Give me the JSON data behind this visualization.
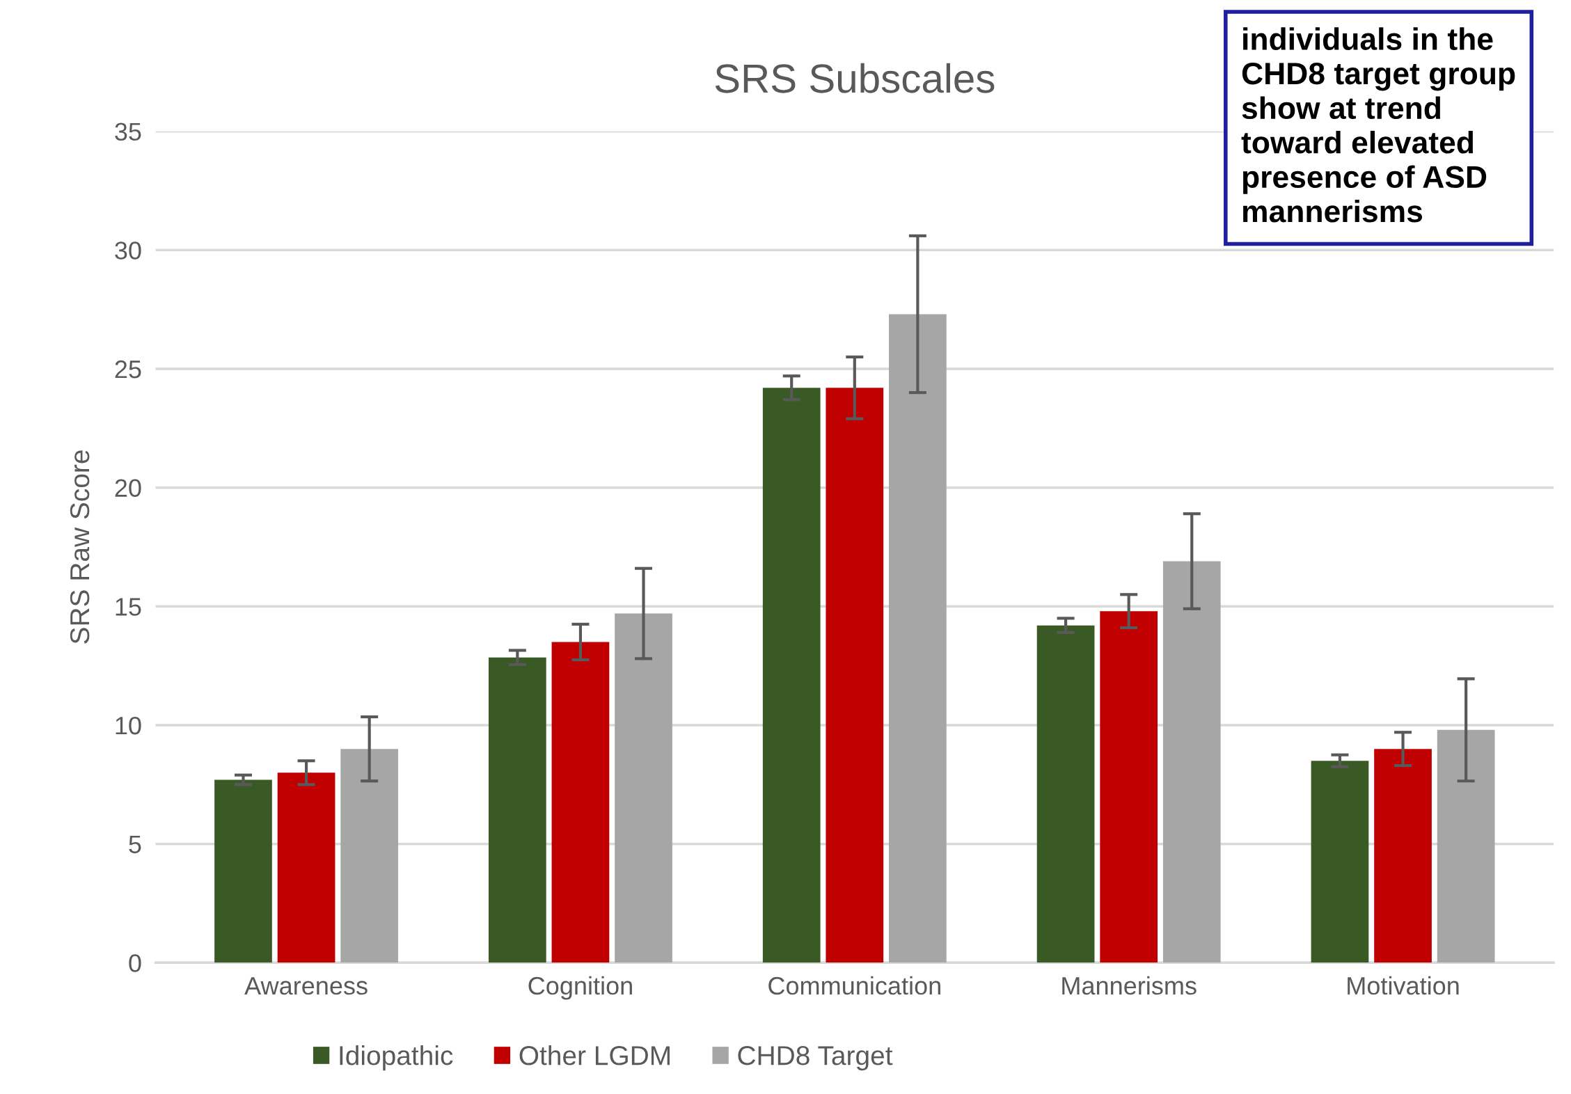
{
  "chart_data": {
    "type": "bar",
    "title": "SRS Subscales",
    "ylabel": "SRS Raw Score",
    "categories": [
      "Awareness",
      "Cognition",
      "Communication",
      "Mannerisms",
      "Motivation"
    ],
    "series": [
      {
        "name": "Idiopathic",
        "color": "#3a5a25",
        "values": [
          7.7,
          12.85,
          24.2,
          14.2,
          8.5
        ],
        "errors": [
          0.2,
          0.3,
          0.5,
          0.3,
          0.25
        ]
      },
      {
        "name": "Other LGDM",
        "color": "#c00000",
        "values": [
          8.0,
          13.5,
          24.2,
          14.8,
          9.0
        ],
        "errors": [
          0.5,
          0.75,
          1.3,
          0.7,
          0.7
        ]
      },
      {
        "name": "CHD8 Target",
        "color": "#a6a6a6",
        "values": [
          9.0,
          14.7,
          27.3,
          16.9,
          9.8
        ],
        "errors": [
          1.35,
          1.9,
          3.3,
          2.0,
          2.15
        ]
      }
    ],
    "ylim": [
      0,
      35
    ],
    "yticks": [
      0,
      5,
      10,
      15,
      20,
      25,
      30,
      35
    ],
    "grid": "y",
    "legend": "bottom",
    "annotations": [
      "individuals in the CHD8 target group show at trend toward elevated presence of ASD mannerisms"
    ]
  }
}
